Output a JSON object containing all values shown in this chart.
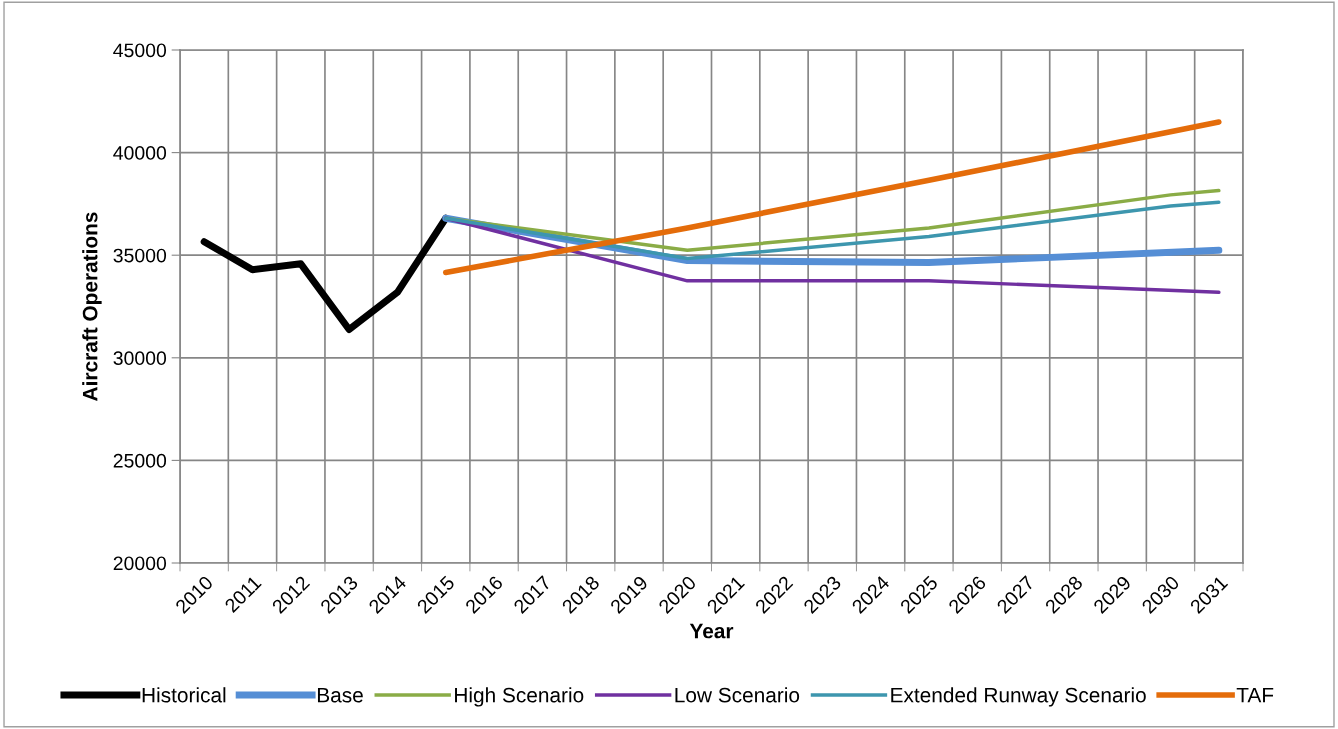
{
  "chart_data": {
    "type": "line",
    "xlabel": "Year",
    "ylabel": "Aircraft Operations",
    "categories": [
      "2010",
      "2011",
      "2012",
      "2013",
      "2014",
      "2015",
      "2016",
      "2017",
      "2018",
      "2019",
      "2020",
      "2021",
      "2022",
      "2023",
      "2024",
      "2025",
      "2026",
      "2027",
      "2028",
      "2029",
      "2030",
      "2031"
    ],
    "series": [
      {
        "name": "Historical",
        "color": "#000000",
        "values": [
          35660,
          34290,
          34580,
          31380,
          33190,
          36800,
          null,
          null,
          null,
          null,
          null,
          null,
          null,
          null,
          null,
          null,
          null,
          null,
          null,
          null,
          null,
          null
        ]
      },
      {
        "name": "Base",
        "color": "#558ed5",
        "values": [
          null,
          null,
          null,
          null,
          null,
          36800,
          null,
          null,
          null,
          null,
          34740,
          null,
          null,
          null,
          null,
          34640,
          null,
          null,
          null,
          null,
          null,
          35240
        ]
      },
      {
        "name": "High Scenario",
        "color": "#8aac46",
        "values": [
          null,
          null,
          null,
          null,
          null,
          36800,
          null,
          null,
          null,
          null,
          35240,
          null,
          null,
          null,
          null,
          36330,
          null,
          null,
          null,
          null,
          37940,
          38150
        ]
      },
      {
        "name": "Low Scenario",
        "color": "#7030a0",
        "values": [
          null,
          null,
          null,
          null,
          null,
          36800,
          null,
          null,
          null,
          null,
          33750,
          null,
          null,
          null,
          null,
          33750,
          null,
          null,
          null,
          null,
          null,
          33190
        ]
      },
      {
        "name": "Extended Runway Scenario",
        "color": "#3d96ae",
        "values": [
          null,
          null,
          null,
          null,
          null,
          36800,
          null,
          null,
          null,
          null,
          34840,
          null,
          null,
          null,
          null,
          35910,
          null,
          null,
          null,
          null,
          37400,
          37580
        ]
      },
      {
        "name": "TAF",
        "color": "#e46c0a",
        "values": [
          null,
          null,
          null,
          null,
          null,
          34160,
          null,
          null,
          null,
          null,
          36330,
          null,
          null,
          null,
          null,
          38650,
          null,
          null,
          null,
          null,
          null,
          41490
        ]
      }
    ],
    "ylim": [
      20000,
      45000
    ],
    "yticks": [
      20000,
      25000,
      30000,
      35000,
      40000,
      45000
    ],
    "grid": true,
    "legend": "bottom",
    "marker": "none",
    "line_style": "solid"
  }
}
